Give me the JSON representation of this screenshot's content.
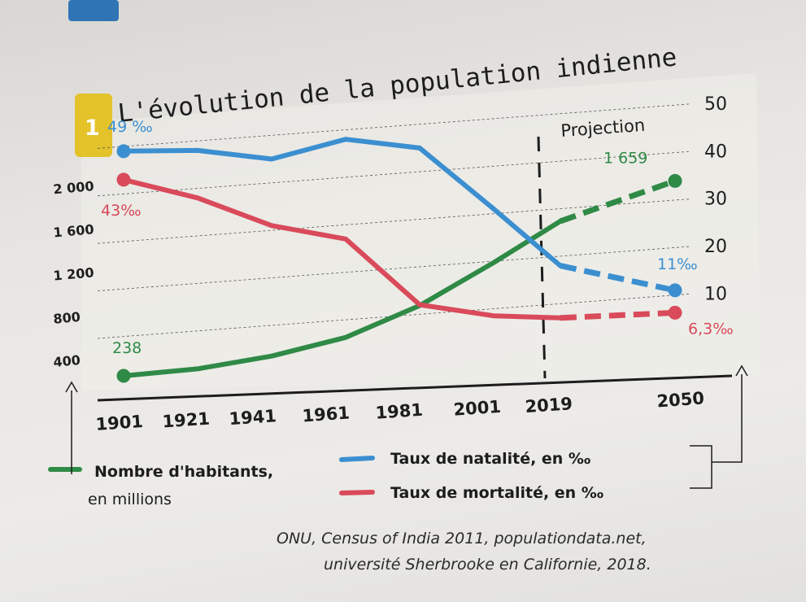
{
  "title": "L'évolution de la population indienne",
  "figure_number": "1",
  "projection_label": "Projection",
  "chart_data": {
    "type": "line",
    "title": "L'évolution de la population indienne",
    "x": [
      1901,
      1921,
      1941,
      1961,
      1981,
      2001,
      2019,
      2050
    ],
    "x_tick_labels": [
      "1901",
      "1921",
      "1941",
      "1961",
      "1981",
      "2001",
      "2019",
      "2050"
    ],
    "projection_start": 2019,
    "left_axis": {
      "ticks": [
        "400",
        "800",
        "1 200",
        "1 600",
        "2 000"
      ],
      "ylim": [
        238,
        2000
      ]
    },
    "right_axis": {
      "ticks": [
        "10",
        "20",
        "30",
        "40",
        "50"
      ],
      "ylim": [
        0,
        50
      ]
    },
    "series": [
      {
        "name": "Nombre d'habitants, en millions",
        "axis": "left",
        "color": "#2f8a46",
        "points": [
          [
            1901,
            238
          ],
          [
            1921,
            251
          ],
          [
            1941,
            318
          ],
          [
            1961,
            439
          ],
          [
            1981,
            683
          ],
          [
            2001,
            1029
          ],
          [
            2019,
            1366
          ],
          [
            2050,
            1659
          ]
        ],
        "start_label": "238",
        "end_label": "1 659"
      },
      {
        "name": "Taux de natalité, en ‰",
        "axis": "right",
        "color": "#3b8fd0",
        "points": [
          [
            1901,
            49
          ],
          [
            1921,
            48
          ],
          [
            1941,
            45
          ],
          [
            1961,
            48
          ],
          [
            1981,
            45
          ],
          [
            2001,
            31
          ],
          [
            2019,
            18
          ],
          [
            2050,
            11
          ]
        ],
        "start_label": "49 ‰",
        "end_label": "11‰"
      },
      {
        "name": "Taux de mortalité, en ‰",
        "axis": "right",
        "color": "#d94a5a",
        "points": [
          [
            1901,
            43
          ],
          [
            1921,
            38
          ],
          [
            1941,
            31
          ],
          [
            1961,
            27
          ],
          [
            1981,
            12
          ],
          [
            2001,
            8.5
          ],
          [
            2019,
            7
          ],
          [
            2050,
            6.3
          ]
        ],
        "start_label": "43‰",
        "end_label": "6,3‰"
      }
    ],
    "legend": [
      {
        "label": "Nombre d'habitants,",
        "sub": "en millions",
        "color": "#2f8a46"
      },
      {
        "label": "Taux de natalité, en ‰",
        "color": "#3b8fd0"
      },
      {
        "label": "Taux de mortalité, en ‰",
        "color": "#d94a5a"
      }
    ],
    "grid": true
  },
  "source_line1": "ONU, Census of India 2011, populationdata.net,",
  "source_line2": "université Sherbrooke en Californie, 2018."
}
